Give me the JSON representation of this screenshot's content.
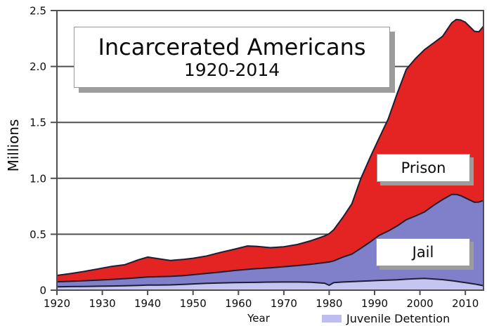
{
  "header": {
    "title": "Incarcerated Americans",
    "subtitle": "1920-2014"
  },
  "axis": {
    "y_title": "Millions",
    "x_title": "Year"
  },
  "area_labels": {
    "prison": "Prison",
    "jail": "Jail"
  },
  "legend": {
    "juvenile_label": "Juvenile Detention"
  },
  "colors": {
    "prison": "#e32422",
    "jail": "#7f7fca",
    "juvenile": "#c5c5f2",
    "juvenile_swatch": "#bdbdee",
    "outline": "#1e1e32",
    "grid": "#4f4f4f",
    "frame": "#4f4f4f",
    "tick_text": "#0b0b0b"
  },
  "chart_data": {
    "type": "area",
    "stacked": true,
    "title": "Incarcerated Americans 1920-2014",
    "xlabel": "Year",
    "ylabel": "Millions",
    "grid": true,
    "legend_position": "bottom",
    "xlim": [
      1920,
      2014
    ],
    "ylim": [
      0,
      2.5
    ],
    "x_ticks": [
      1920,
      1930,
      1940,
      1950,
      1960,
      1970,
      1980,
      1990,
      2000,
      2010
    ],
    "x_tick_labels": [
      "1920",
      "1930",
      "1940",
      "1950",
      "1960",
      "1970",
      "1980",
      "1990",
      "2000",
      "2010"
    ],
    "y_ticks": [
      0,
      0.5,
      1.0,
      1.5,
      2.0,
      2.5
    ],
    "y_tick_labels": [
      "0",
      "0.5",
      "1.0",
      "1.5",
      "2.0",
      "2.5"
    ],
    "units": "millions of people",
    "x": [
      1920,
      1923,
      1926,
      1929,
      1932,
      1935,
      1938,
      1940,
      1942,
      1945,
      1948,
      1950,
      1953,
      1956,
      1959,
      1962,
      1964,
      1967,
      1970,
      1973,
      1976,
      1979,
      1980,
      1981,
      1983,
      1985,
      1987,
      1989,
      1991,
      1993,
      1995,
      1997,
      1999,
      2001,
      2003,
      2005,
      2007,
      2008,
      2009,
      2010,
      2012,
      2013,
      2014
    ],
    "series": [
      {
        "name": "Juvenile Detention",
        "color": "#c5c5f2",
        "values": [
          0.03,
          0.032,
          0.033,
          0.035,
          0.037,
          0.039,
          0.043,
          0.046,
          0.046,
          0.047,
          0.052,
          0.056,
          0.061,
          0.064,
          0.067,
          0.069,
          0.07,
          0.072,
          0.073,
          0.073,
          0.071,
          0.062,
          0.044,
          0.068,
          0.073,
          0.076,
          0.08,
          0.083,
          0.087,
          0.09,
          0.093,
          0.098,
          0.102,
          0.105,
          0.1,
          0.094,
          0.085,
          0.079,
          0.073,
          0.068,
          0.055,
          0.048,
          0.04
        ]
      },
      {
        "name": "Jail",
        "color": "#7f7fca",
        "values": [
          0.045,
          0.047,
          0.051,
          0.055,
          0.059,
          0.064,
          0.069,
          0.072,
          0.074,
          0.076,
          0.078,
          0.082,
          0.089,
          0.098,
          0.108,
          0.117,
          0.122,
          0.128,
          0.137,
          0.147,
          0.161,
          0.184,
          0.208,
          0.194,
          0.222,
          0.246,
          0.295,
          0.347,
          0.403,
          0.438,
          0.482,
          0.532,
          0.561,
          0.595,
          0.658,
          0.716,
          0.771,
          0.777,
          0.772,
          0.757,
          0.731,
          0.74,
          0.762
        ]
      },
      {
        "name": "Prison",
        "color": "#e32422",
        "values": [
          0.057,
          0.069,
          0.084,
          0.1,
          0.116,
          0.125,
          0.16,
          0.178,
          0.163,
          0.143,
          0.146,
          0.147,
          0.156,
          0.175,
          0.19,
          0.209,
          0.2,
          0.18,
          0.178,
          0.188,
          0.21,
          0.239,
          0.253,
          0.278,
          0.355,
          0.45,
          0.625,
          0.755,
          0.87,
          1.002,
          1.185,
          1.345,
          1.407,
          1.45,
          1.452,
          1.46,
          1.534,
          1.564,
          1.57,
          1.57,
          1.529,
          1.522,
          1.558
        ]
      }
    ]
  }
}
